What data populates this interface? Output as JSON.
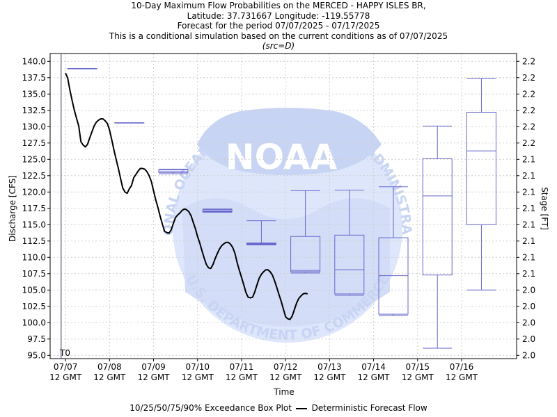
{
  "title": {
    "line1": "10-Day Maximum Flow Probabilities on the MERCED - HAPPY ISLES BR,",
    "line2": "Latitude: 37.731667 Longitude: -119.55778",
    "line3": "Forecast for the period 07/07/2025 - 07/17/2025",
    "line4": "This is a conditional simulation based on the current conditions as of 07/07/2025",
    "src": "(src=D)"
  },
  "watermark": {
    "logo_text": "NOAA",
    "ring_text": "NATIONAL OCEANIC AND ATMOSPHERIC ADMINISTRATION",
    "bottom_text": "U.S. DEPARTMENT OF COMMERCE"
  },
  "legend": {
    "box_label": "10/25/50/75/90% Exceedance Box Plot",
    "line_label": "Deterministic Forecast Flow"
  },
  "colors": {
    "box": "#6666cc",
    "t0_line": "#333366",
    "flow_line": "#000000",
    "grid": "#cfcfcf",
    "watermark_light": "#dde6fb",
    "watermark_mid": "#c8d4f4"
  },
  "chart_data": {
    "type": "box",
    "xlabel": "Time",
    "ylabel": "Discharge [CFS]",
    "y2label": "Stage [FT]",
    "t0_label": "T0",
    "ylim": [
      94.5,
      141.2
    ],
    "xlim": [
      -0.35,
      10.25
    ],
    "grid": true,
    "y_ticks": [
      95.0,
      97.5,
      100.0,
      102.5,
      105.0,
      107.5,
      110.0,
      112.5,
      115.0,
      117.5,
      120.0,
      122.5,
      125.0,
      127.5,
      130.0,
      132.5,
      135.0,
      137.5,
      140.0
    ],
    "y_tick_labels": [
      "95.0",
      "97.5",
      "100.0",
      "102.5",
      "105.0",
      "107.5",
      "110.0",
      "112.5",
      "115.0",
      "117.5",
      "120.0",
      "122.5",
      "125.0",
      "127.5",
      "130.0",
      "132.5",
      "135.0",
      "137.5",
      "140.0"
    ],
    "y2_tick_labels": [
      "2.0",
      "2.0",
      "2.0",
      "2.0",
      "2.0",
      "2.1",
      "2.1",
      "2.1",
      "2.1",
      "2.1",
      "2.1",
      "2.1",
      "2.1",
      "2.2",
      "2.2",
      "2.2",
      "2.2",
      "2.2",
      "2.2"
    ],
    "x_ticks": [
      0,
      1,
      2,
      3,
      4,
      5,
      6,
      7,
      8,
      9
    ],
    "x_tick_labels": [
      [
        "07/07",
        "12 GMT"
      ],
      [
        "07/08",
        "12 GMT"
      ],
      [
        "07/09",
        "12 GMT"
      ],
      [
        "07/10",
        "12 GMT"
      ],
      [
        "07/11",
        "12 GMT"
      ],
      [
        "07/12",
        "12 GMT"
      ],
      [
        "07/13",
        "12 GMT"
      ],
      [
        "07/14",
        "12 GMT"
      ],
      [
        "07/15",
        "12 GMT"
      ],
      [
        "07/16",
        "12 GMT"
      ]
    ],
    "t0_x": -0.1,
    "boxes": [
      {
        "x": 0.38,
        "p10": 138.9,
        "p25": 138.9,
        "p50": 138.9,
        "p75": 138.9,
        "p90": 138.9
      },
      {
        "x": 1.45,
        "p10": 130.6,
        "p25": 130.6,
        "p50": 130.6,
        "p75": 130.6,
        "p90": 130.6
      },
      {
        "x": 2.45,
        "p10": 122.8,
        "p25": 123.0,
        "p50": 123.1,
        "p75": 123.4,
        "p90": 123.5
      },
      {
        "x": 3.45,
        "p10": 116.9,
        "p25": 117.0,
        "p50": 117.1,
        "p75": 117.3,
        "p90": 117.4
      },
      {
        "x": 4.45,
        "p10": 111.9,
        "p25": 112.0,
        "p50": 112.1,
        "p75": 112.2,
        "p90": 115.6
      },
      {
        "x": 5.45,
        "p10": 107.6,
        "p25": 107.8,
        "p50": 108.0,
        "p75": 113.2,
        "p90": 120.2
      },
      {
        "x": 6.45,
        "p10": 104.2,
        "p25": 104.4,
        "p50": 108.1,
        "p75": 113.4,
        "p90": 120.3
      },
      {
        "x": 7.45,
        "p10": 101.1,
        "p25": 101.3,
        "p50": 107.2,
        "p75": 113.0,
        "p90": 120.8
      },
      {
        "x": 8.45,
        "p10": 96.1,
        "p25": 107.3,
        "p50": 119.4,
        "p75": 125.1,
        "p90": 130.1
      },
      {
        "x": 9.45,
        "p10": 105.0,
        "p25": 115.0,
        "p50": 126.3,
        "p75": 132.2,
        "p90": 137.4
      }
    ],
    "series": [
      {
        "points": [
          [
            0.0,
            138.2
          ],
          [
            0.05,
            137.4
          ],
          [
            0.1,
            135.6
          ],
          [
            0.15,
            134.0
          ],
          [
            0.2,
            132.5
          ],
          [
            0.25,
            131.3
          ],
          [
            0.3,
            130.1
          ],
          [
            0.35,
            127.7
          ],
          [
            0.4,
            127.2
          ],
          [
            0.45,
            126.9
          ],
          [
            0.5,
            127.3
          ],
          [
            0.55,
            128.3
          ],
          [
            0.6,
            129.2
          ],
          [
            0.65,
            130.1
          ],
          [
            0.7,
            130.7
          ],
          [
            0.75,
            131.0
          ],
          [
            0.8,
            131.2
          ],
          [
            0.85,
            131.2
          ],
          [
            0.9,
            130.9
          ],
          [
            0.95,
            130.5
          ],
          [
            1.0,
            129.5
          ],
          [
            1.05,
            128.0
          ],
          [
            1.1,
            126.4
          ],
          [
            1.15,
            125.0
          ],
          [
            1.2,
            123.6
          ],
          [
            1.25,
            122.1
          ],
          [
            1.3,
            120.6
          ],
          [
            1.35,
            120.0
          ],
          [
            1.4,
            119.8
          ],
          [
            1.45,
            120.5
          ],
          [
            1.5,
            121.0
          ],
          [
            1.55,
            122.2
          ],
          [
            1.6,
            122.7
          ],
          [
            1.65,
            123.2
          ],
          [
            1.7,
            123.6
          ],
          [
            1.75,
            123.6
          ],
          [
            1.8,
            123.5
          ],
          [
            1.85,
            123.1
          ],
          [
            1.9,
            122.5
          ],
          [
            1.95,
            121.6
          ],
          [
            2.0,
            120.2
          ],
          [
            2.05,
            118.8
          ],
          [
            2.1,
            117.6
          ],
          [
            2.15,
            116.3
          ],
          [
            2.2,
            115.1
          ],
          [
            2.25,
            114.0
          ],
          [
            2.3,
            113.8
          ],
          [
            2.35,
            113.7
          ],
          [
            2.4,
            114.2
          ],
          [
            2.45,
            115.2
          ],
          [
            2.5,
            116.1
          ],
          [
            2.55,
            116.5
          ],
          [
            2.6,
            116.8
          ],
          [
            2.65,
            117.2
          ],
          [
            2.7,
            117.4
          ],
          [
            2.75,
            117.3
          ],
          [
            2.8,
            117.0
          ],
          [
            2.85,
            116.4
          ],
          [
            2.9,
            115.4
          ],
          [
            2.95,
            114.4
          ],
          [
            3.0,
            113.2
          ],
          [
            3.05,
            112.2
          ],
          [
            3.1,
            111.0
          ],
          [
            3.15,
            109.9
          ],
          [
            3.2,
            108.9
          ],
          [
            3.25,
            108.4
          ],
          [
            3.3,
            108.3
          ],
          [
            3.35,
            108.9
          ],
          [
            3.4,
            109.8
          ],
          [
            3.45,
            110.6
          ],
          [
            3.5,
            111.3
          ],
          [
            3.55,
            111.8
          ],
          [
            3.6,
            112.1
          ],
          [
            3.65,
            112.3
          ],
          [
            3.7,
            112.3
          ],
          [
            3.75,
            112.0
          ],
          [
            3.8,
            111.5
          ],
          [
            3.85,
            110.6
          ],
          [
            3.9,
            109.2
          ],
          [
            3.95,
            108.0
          ],
          [
            4.0,
            106.9
          ],
          [
            4.05,
            105.8
          ],
          [
            4.1,
            104.6
          ],
          [
            4.15,
            103.9
          ],
          [
            4.2,
            103.8
          ],
          [
            4.25,
            103.9
          ],
          [
            4.3,
            104.7
          ],
          [
            4.35,
            105.8
          ],
          [
            4.4,
            106.8
          ],
          [
            4.45,
            107.4
          ],
          [
            4.5,
            107.8
          ],
          [
            4.55,
            108.1
          ],
          [
            4.6,
            108.1
          ],
          [
            4.65,
            107.8
          ],
          [
            4.7,
            107.3
          ],
          [
            4.75,
            106.4
          ],
          [
            4.8,
            105.4
          ],
          [
            4.85,
            104.3
          ],
          [
            4.9,
            103.3
          ],
          [
            4.95,
            102.1
          ],
          [
            5.0,
            100.9
          ],
          [
            5.05,
            100.6
          ],
          [
            5.1,
            100.5
          ],
          [
            5.15,
            101.0
          ],
          [
            5.2,
            102.0
          ],
          [
            5.25,
            103.0
          ],
          [
            5.3,
            103.7
          ],
          [
            5.35,
            104.1
          ],
          [
            5.4,
            104.4
          ],
          [
            5.45,
            104.5
          ],
          [
            5.5,
            104.4
          ]
        ]
      }
    ]
  }
}
